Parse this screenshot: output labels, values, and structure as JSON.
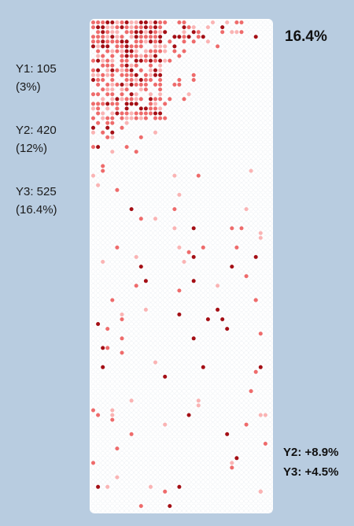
{
  "colors": {
    "background": "#b8cce0",
    "panel": "#ffffff",
    "dark": "#a50f15",
    "medium": "#ef6b6b",
    "light": "#fbb4b4"
  },
  "headline": "16.4%",
  "left_labels": [
    {
      "line1": "Y1: 105",
      "line2": "(3%)"
    },
    {
      "line1": "Y2: 420",
      "line2": "(12%)"
    },
    {
      "line1": "Y3: 525",
      "line2": "(16.4%)"
    }
  ],
  "right_labels": [
    "Y2: +8.9%",
    "Y3: +4.5%"
  ],
  "chart_data": {
    "type": "scatter",
    "grid": false,
    "legend": "none",
    "series": [
      {
        "values": [
          105,
          420,
          525
        ]
      }
    ],
    "categories": [
      "Y1",
      "Y2",
      "Y3"
    ],
    "shares_percent": [
      3,
      12,
      16.4
    ]
  }
}
